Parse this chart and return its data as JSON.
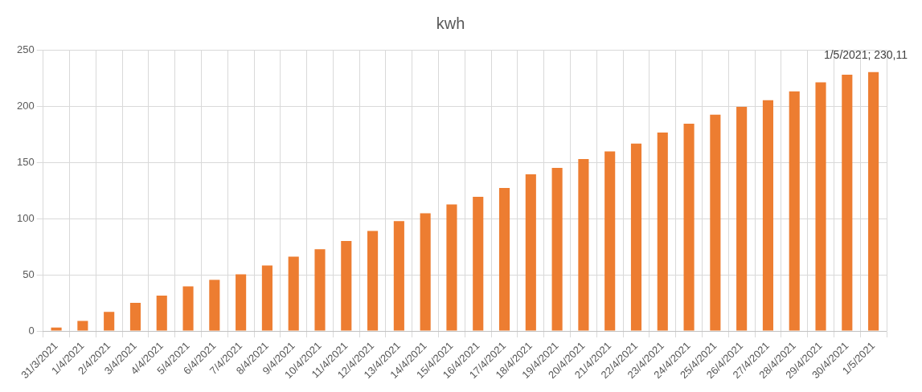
{
  "chart_data": {
    "type": "bar",
    "title": "kwh",
    "categories": [
      "31/3/2021",
      "1/4/2021",
      "2/4/2021",
      "3/4/2021",
      "4/4/2021",
      "5/4/2021",
      "6/4/2021",
      "7/4/2021",
      "8/4/2021",
      "9/4/2021",
      "10/4/2021",
      "11/4/2021",
      "12/4/2021",
      "13/4/2021",
      "14/4/2021",
      "15/4/2021",
      "16/4/2021",
      "17/4/2021",
      "18/4/2021",
      "19/4/2021",
      "20/4/2021",
      "21/4/2021",
      "22/4/2021",
      "23/4/2021",
      "24/4/2021",
      "25/4/2021",
      "26/4/2021",
      "27/4/2021",
      "28/4/2021",
      "29/4/2021",
      "30/4/2021",
      "1/5/2021"
    ],
    "values": [
      3,
      9,
      17,
      25,
      31.5,
      39.6,
      45.5,
      50.4,
      58.3,
      66.2,
      72.8,
      80,
      89,
      97.7,
      104.6,
      112.5,
      119.3,
      127.2,
      139.3,
      145,
      152.8,
      159.7,
      166.6,
      176.4,
      184.3,
      192.4,
      199.3,
      205.2,
      213.1,
      221,
      227.9,
      230.11
    ],
    "value_labels": [
      null,
      null,
      null,
      null,
      null,
      null,
      null,
      null,
      null,
      null,
      null,
      null,
      null,
      null,
      null,
      null,
      null,
      null,
      null,
      null,
      null,
      null,
      null,
      null,
      null,
      null,
      null,
      null,
      null,
      null,
      null,
      "1/5/2021; 230,11"
    ],
    "color": "#ed7d31",
    "ylim": [
      0,
      250
    ],
    "yticks": [
      0,
      50,
      100,
      150,
      200,
      250
    ],
    "grid": true
  }
}
